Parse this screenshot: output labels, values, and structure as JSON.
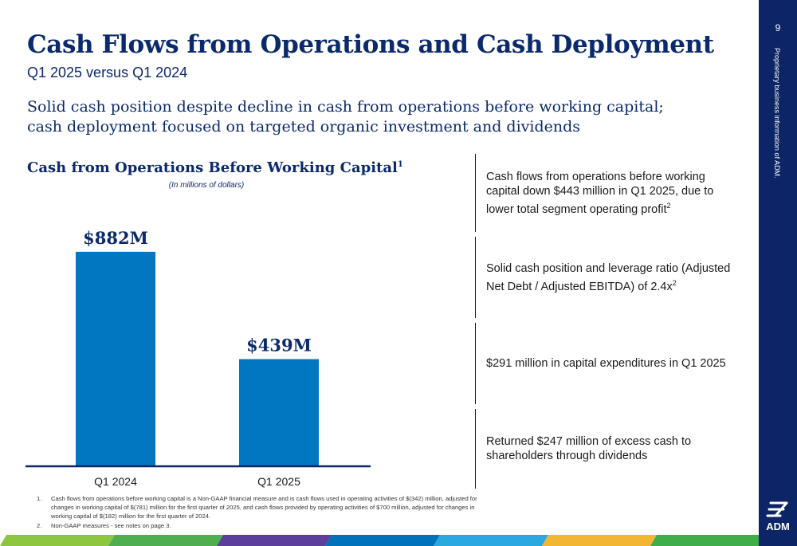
{
  "header": {
    "title": "Cash Flows from Operations and Cash Deployment",
    "subtitle": "Q1 2025 versus Q1 2024",
    "intro": "Solid cash position despite decline in cash from operations before working capital; cash deployment focused on targeted organic investment and dividends"
  },
  "chart_data": {
    "type": "bar",
    "title": "Cash from Operations Before Working Capital",
    "title_footnote": "1",
    "note": "(In millions of dollars)",
    "categories": [
      "Q1 2024",
      "Q1 2025"
    ],
    "values": [
      882,
      439
    ],
    "data_labels": [
      "$882M",
      "$439M"
    ],
    "ylim": [
      0,
      1000
    ],
    "bar_color": "#0077c0",
    "grid": false
  },
  "bullets": [
    {
      "text": "Cash flows from operations before working capital down $443 million in Q1 2025, due to lower total segment operating profit",
      "sup": "2"
    },
    {
      "text": "Solid cash position and leverage ratio (Adjusted Net Debt / Adjusted EBITDA) of 2.4x",
      "sup": "2"
    },
    {
      "text": "$291 million in capital expenditures in Q1 2025",
      "sup": ""
    },
    {
      "text": "Returned $247 million of excess cash to shareholders through dividends",
      "sup": ""
    }
  ],
  "footnotes": [
    {
      "num": "1.",
      "text": "Cash flows from operations before working capital is a Non-GAAP financial measure and is cash flows used in operating activities of $(342) million, adjusted for changes in working capital of $(781) million for the first quarter of 2025, and cash flows provided by operating activities of $700 million, adjusted for changes in working capital of $(182) million for the first quarter of 2024."
    },
    {
      "num": "2.",
      "text": "Non-GAAP measures - see notes on page 3."
    }
  ],
  "sidebar": {
    "page_number": "9",
    "vertical_text": "Proprietary business information of ADM.",
    "logo_text": "ADM"
  },
  "colors": {
    "navy": "#0b2566",
    "bar": "#0077c0",
    "band": [
      "#8dc63f",
      "#4fae4e",
      "#5b3f99",
      "#0072bc",
      "#29a9e0",
      "#f2b632",
      "#3fae49"
    ]
  }
}
